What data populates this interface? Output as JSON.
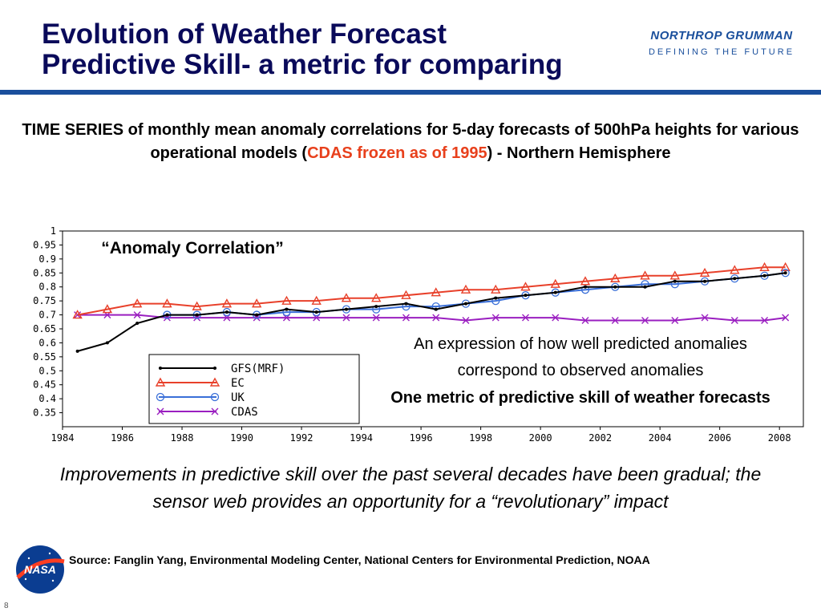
{
  "slide": {
    "title_line1": "Evolution of Weather Forecast",
    "title_line2": "Predictive Skill- a metric for comparing",
    "logo_name": "NORTHROP GRUMMAN",
    "logo_tagline": "DEFINING THE FUTURE",
    "subtitle_part1": "TIME SERIES of monthly mean anomaly correlations for 5-day forecasts of 500hPa heights for various operational models (",
    "subtitle_red": "CDAS frozen as of 1995",
    "subtitle_part2": ") - Northern Hemisphere",
    "improvements_text": "Improvements in predictive skill over the past several decades have been gradual; the sensor web provides an opportunity for a “revolutionary” impact",
    "source_text": "Source: Fanglin Yang, Environmental Modeling Center, National Centers for Environmental Prediction, NOAA",
    "nasa_label": "NASA",
    "page_number": "8"
  },
  "colors": {
    "title": "#0a0a5a",
    "brand_blue": "#1a4f9c",
    "red_highlight": "#e8401c",
    "gfs": "#000000",
    "ec": "#e8402a",
    "uk": "#3a6fd8",
    "cdas": "#9a1fc0"
  },
  "chart_data": {
    "type": "line",
    "title": "“Anomaly Correlation”",
    "xlabel": "",
    "ylabel": "",
    "xlim": [
      1984,
      2008.8
    ],
    "ylim": [
      0.3,
      1.0
    ],
    "x_ticks": [
      "1984",
      "1986",
      "1988",
      "1990",
      "1992",
      "1994",
      "1996",
      "1998",
      "2000",
      "2002",
      "2004",
      "2006",
      "2008"
    ],
    "y_ticks": [
      "1",
      "0.95",
      "0.9",
      "0.85",
      "0.8",
      "0.75",
      "0.7",
      "0.65",
      "0.6",
      "0.55",
      "0.5",
      "0.45",
      "0.4",
      "0.35"
    ],
    "legend_position": "bottom-left",
    "annotations": [
      "An expression of how well predicted anomalies",
      "correspond to observed anomalies",
      "One metric of predictive skill of weather forecasts"
    ],
    "series": [
      {
        "name": "GFS(MRF)",
        "color": "#000000",
        "marker": "none",
        "x": [
          1984.5,
          1985.5,
          1986.5,
          1987.5,
          1988.5,
          1989.5,
          1990.5,
          1991.5,
          1992.5,
          1993.5,
          1994.5,
          1995.5,
          1996.5,
          1997.5,
          1998.5,
          1999.5,
          2000.5,
          2001.5,
          2002.5,
          2003.5,
          2004.5,
          2005.5,
          2006.5,
          2007.5,
          2008.2
        ],
        "y": [
          0.57,
          0.6,
          0.67,
          0.7,
          0.7,
          0.71,
          0.7,
          0.72,
          0.71,
          0.72,
          0.73,
          0.74,
          0.72,
          0.74,
          0.76,
          0.77,
          0.78,
          0.8,
          0.8,
          0.8,
          0.82,
          0.82,
          0.83,
          0.84,
          0.85
        ]
      },
      {
        "name": "EC",
        "color": "#e8402a",
        "marker": "triangle",
        "x": [
          1984.5,
          1985.5,
          1986.5,
          1987.5,
          1988.5,
          1989.5,
          1990.5,
          1991.5,
          1992.5,
          1993.5,
          1994.5,
          1995.5,
          1996.5,
          1997.5,
          1998.5,
          1999.5,
          2000.5,
          2001.5,
          2002.5,
          2003.5,
          2004.5,
          2005.5,
          2006.5,
          2007.5,
          2008.2
        ],
        "y": [
          0.7,
          0.72,
          0.74,
          0.74,
          0.73,
          0.74,
          0.74,
          0.75,
          0.75,
          0.76,
          0.76,
          0.77,
          0.78,
          0.79,
          0.79,
          0.8,
          0.81,
          0.82,
          0.83,
          0.84,
          0.84,
          0.85,
          0.86,
          0.87,
          0.87
        ]
      },
      {
        "name": "UK",
        "color": "#3a6fd8",
        "marker": "circle",
        "x": [
          1987.5,
          1988.5,
          1989.5,
          1990.5,
          1991.5,
          1992.5,
          1993.5,
          1994.5,
          1995.5,
          1996.5,
          1997.5,
          1998.5,
          1999.5,
          2000.5,
          2001.5,
          2002.5,
          2003.5,
          2004.5,
          2005.5,
          2006.5,
          2007.5,
          2008.2
        ],
        "y": [
          0.7,
          0.7,
          0.71,
          0.7,
          0.71,
          0.71,
          0.72,
          0.72,
          0.73,
          0.73,
          0.74,
          0.75,
          0.77,
          0.78,
          0.79,
          0.8,
          0.81,
          0.81,
          0.82,
          0.83,
          0.84,
          0.85
        ]
      },
      {
        "name": "CDAS",
        "color": "#9a1fc0",
        "marker": "x",
        "x": [
          1984.5,
          1985.5,
          1986.5,
          1987.5,
          1988.5,
          1989.5,
          1990.5,
          1991.5,
          1992.5,
          1993.5,
          1994.5,
          1995.5,
          1996.5,
          1997.5,
          1998.5,
          1999.5,
          2000.5,
          2001.5,
          2002.5,
          2003.5,
          2004.5,
          2005.5,
          2006.5,
          2007.5,
          2008.2
        ],
        "y": [
          0.7,
          0.7,
          0.7,
          0.69,
          0.69,
          0.69,
          0.69,
          0.69,
          0.69,
          0.69,
          0.69,
          0.69,
          0.69,
          0.68,
          0.69,
          0.69,
          0.69,
          0.68,
          0.68,
          0.68,
          0.68,
          0.69,
          0.68,
          0.68,
          0.69
        ]
      }
    ]
  }
}
